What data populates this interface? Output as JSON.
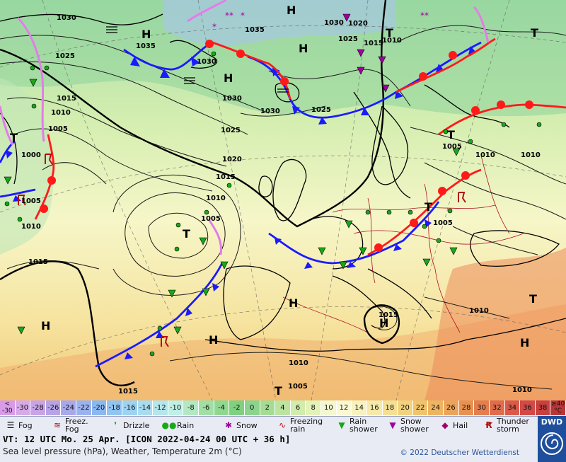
{
  "map": {
    "pressure_labels": [
      "1030",
      "1035",
      "1025",
      "1015",
      "1010",
      "1005",
      "1000",
      "1030",
      "1025",
      "1020",
      "1015",
      "1010",
      "1005",
      "1015",
      "1015",
      "1010",
      "1005",
      "1010",
      "1020",
      "1025",
      "1030",
      "1035",
      "1015",
      "1010",
      "1005",
      "1010",
      "1015",
      "1010",
      "1010",
      "1005",
      "1030",
      "1025",
      "1030",
      "1010",
      "1005"
    ],
    "high_marks": [
      "H",
      "H",
      "H",
      "H",
      "H",
      "H",
      "H",
      "H",
      "H"
    ],
    "low_marks": [
      "T",
      "T",
      "T",
      "T",
      "T",
      "T",
      "T",
      "T"
    ]
  },
  "palette": {
    "values": [
      "<\n-30",
      "-30",
      "-28",
      "-26",
      "-24",
      "-22",
      "-20",
      "-18",
      "-16",
      "-14",
      "-12",
      "-10",
      "-8",
      "-6",
      "-4",
      "-2",
      "0",
      "2",
      "4",
      "6",
      "8",
      "10",
      "12",
      "14",
      "16",
      "18",
      "20",
      "22",
      "24",
      "26",
      "28",
      "30",
      "32",
      "34",
      "36",
      "38",
      "≥40\n°C"
    ],
    "colors": [
      "#d99be8",
      "#d6a9e8",
      "#c7a4e6",
      "#b6a4e6",
      "#a8a8ec",
      "#9bb2f0",
      "#8ab8f2",
      "#90c4f2",
      "#9cd2f2",
      "#a8dcf0",
      "#b4e6ec",
      "#bff0e6",
      "#b2e8c2",
      "#a0e0a4",
      "#90d890",
      "#80d080",
      "#8ad48e",
      "#a4dc94",
      "#bce4a0",
      "#d2ecac",
      "#e4f2b8",
      "#f4f8d0",
      "#fbf8d4",
      "#f8f2c0",
      "#f6eaaa",
      "#f4e094",
      "#f2d27e",
      "#f0c46e",
      "#eeb462",
      "#eca45a",
      "#e89252",
      "#e47e4e",
      "#e06c4c",
      "#da5a4a",
      "#d24a48",
      "#c8403f",
      "#b83636"
    ]
  },
  "legend": {
    "fog": "Fog",
    "freezing_fog_l1": "Freez.",
    "freezing_fog_l2": "Fog",
    "drizzle": "Drizzle",
    "rain": "Rain",
    "snow": "Snow",
    "freezing_rain_l1": "Freezing",
    "freezing_rain_l2": "rain",
    "rain_shower_l1": "Rain",
    "rain_shower_l2": "shower",
    "snow_shower_l1": "Snow",
    "snow_shower_l2": "shower",
    "hail": "Hail",
    "thunderstorm_l1": "Thunder",
    "thunderstorm_l2": "storm"
  },
  "info": {
    "valid_time": "VT: 12 UTC Mo.  25 Apr. [ICON 2022-04-24  00 UTC + 36 h]",
    "subtitle": "Sea level pressure (hPa), Weather, Temperature 2m (°C)",
    "copyright": "© 2022 Deutscher Wetterdienst",
    "logo_text": "DWD"
  },
  "colors": {
    "cold_front": "#1a1aff",
    "warm_front": "#ff1a1a",
    "occlusion": "#e27ee8"
  }
}
